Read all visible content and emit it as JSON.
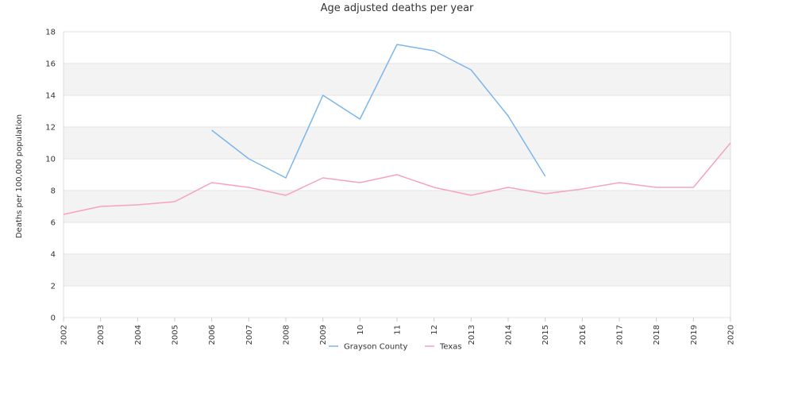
{
  "chart_data": {
    "type": "line",
    "title": "Age adjusted deaths per year",
    "ylabel": "Deaths per 100,000 population",
    "xlabel": "",
    "ylim": [
      0,
      18
    ],
    "yticks": [
      0,
      2,
      4,
      6,
      8,
      10,
      12,
      14,
      16,
      18
    ],
    "x": [
      "2002",
      "2003",
      "2004",
      "2005",
      "2006",
      "2007",
      "2008",
      "2009",
      "2010",
      "2011",
      "2012",
      "2013",
      "2014",
      "2015",
      "2016",
      "2017",
      "2018",
      "2019",
      "2020"
    ],
    "x_tick_labels": [
      "2002",
      "2003",
      "2004",
      "2005",
      "2006",
      "2007",
      "2008",
      "2009",
      "10",
      "11",
      "12",
      "2013",
      "2014",
      "2015",
      "2016",
      "2017",
      "2018",
      "2019",
      "2020"
    ],
    "grid": true,
    "legend_position": "bottom",
    "series": [
      {
        "name": "Grayson County",
        "color": "#7cb5ec",
        "values": [
          null,
          null,
          null,
          null,
          11.8,
          10.0,
          8.8,
          14.0,
          12.5,
          17.2,
          16.8,
          15.6,
          12.7,
          8.9,
          null,
          null,
          null,
          null,
          null
        ]
      },
      {
        "name": "Texas",
        "color": "#f7a1c4",
        "values": [
          6.5,
          7.0,
          7.1,
          7.3,
          8.5,
          8.2,
          7.7,
          8.8,
          8.5,
          9.0,
          8.2,
          7.7,
          8.2,
          7.8,
          8.1,
          8.5,
          8.2,
          8.2,
          11.0
        ]
      }
    ]
  }
}
